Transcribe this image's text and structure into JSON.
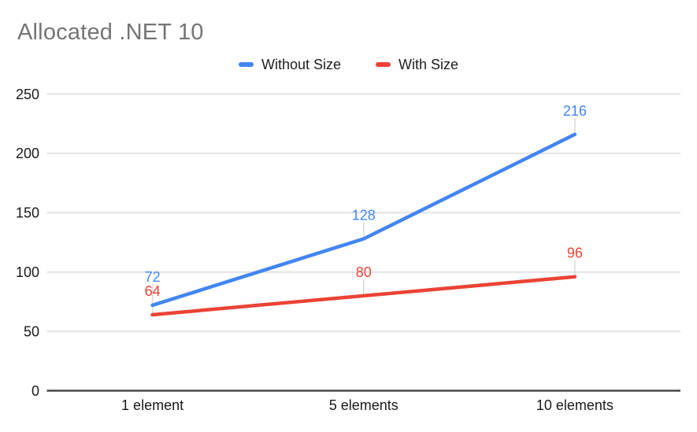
{
  "title": "Allocated .NET 10",
  "chart_data": {
    "type": "line",
    "title": "Allocated .NET 10",
    "categories": [
      "1 element",
      "5 elements",
      "10 elements"
    ],
    "series": [
      {
        "name": "Without Size",
        "color": "#4285F4",
        "values": [
          72,
          128,
          216
        ]
      },
      {
        "name": "With Size",
        "color": "#EA4335",
        "values": [
          64,
          80,
          96
        ]
      }
    ],
    "ylim": [
      0,
      250
    ],
    "yticks": [
      0,
      50,
      100,
      150,
      200,
      250
    ],
    "grid": true,
    "legend_position": "top",
    "data_labels": true,
    "xlabel": "",
    "ylabel": ""
  },
  "colors": {
    "background": "#ffffff",
    "title_text": "#757575",
    "axis_text": "#1a1a1a",
    "gridline": "#e3e3e3",
    "axis_line": "#494949",
    "label_leader": "#d9d9d9"
  }
}
